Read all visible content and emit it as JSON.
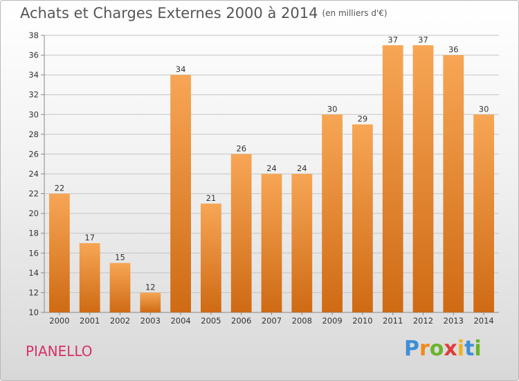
{
  "header": {
    "title": "Achats et Charges Externes 2000 à 2014",
    "unit": "(en milliers d'€)"
  },
  "footer": {
    "city": "PIANELLO",
    "brand": {
      "text": "Proxiti",
      "letters": [
        "P",
        "r",
        "o",
        "x",
        "i",
        "t",
        "i"
      ],
      "colors": [
        "#3f8fd6",
        "#f08a1c",
        "#6ab42a",
        "#e23a3a",
        "#f0b21c",
        "#3f8fd6",
        "#6ab42a"
      ]
    }
  },
  "colors": {
    "bar_top": "#f7a655",
    "bar_bottom": "#cf6a14",
    "city": "#d6316b"
  },
  "chart_data": {
    "type": "bar",
    "title": "Achats et Charges Externes 2000 à 2014",
    "unit": "(en milliers d'€)",
    "categories": [
      "2000",
      "2001",
      "2002",
      "2003",
      "2004",
      "2005",
      "2006",
      "2007",
      "2008",
      "2009",
      "2010",
      "2011",
      "2012",
      "2013",
      "2014"
    ],
    "values": [
      22,
      17,
      15,
      12,
      34,
      21,
      26,
      24,
      24,
      30,
      29,
      37,
      37,
      36,
      30
    ],
    "ylim": [
      10,
      38
    ],
    "yticks": [
      10,
      12,
      14,
      16,
      18,
      20,
      22,
      24,
      26,
      28,
      30,
      32,
      34,
      36,
      38
    ],
    "grid": true,
    "legend": "none"
  }
}
